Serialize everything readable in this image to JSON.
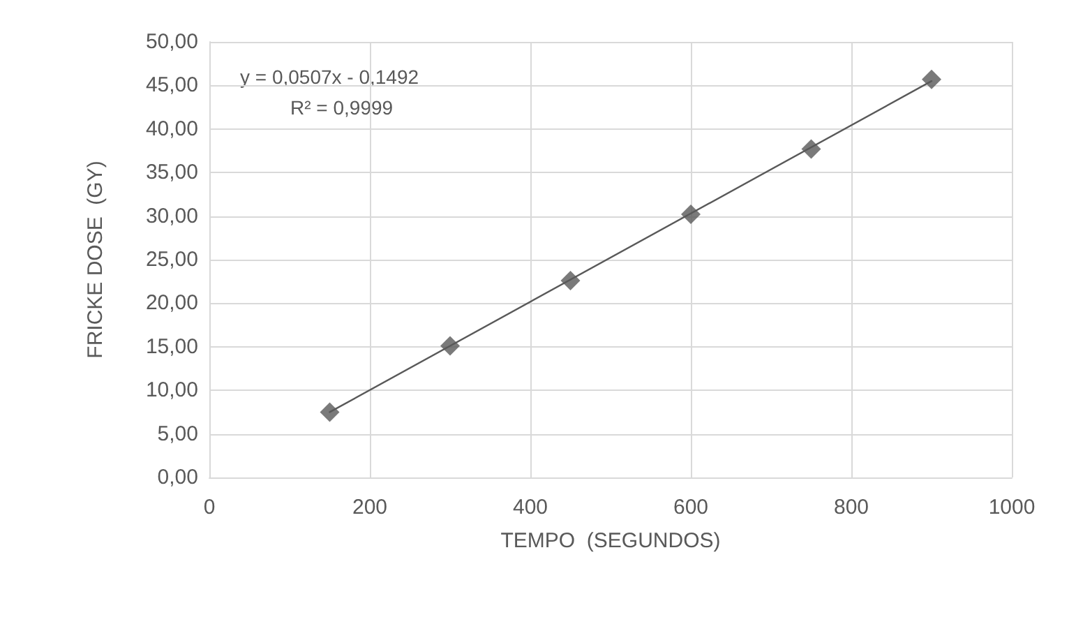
{
  "chart_data": {
    "type": "scatter",
    "xlabel": "TEMPO  (SEGUNDOS)",
    "ylabel": "FRICKE DOSE  (GY)",
    "x": [
      150,
      300,
      450,
      600,
      750,
      900
    ],
    "series": [
      {
        "color": "#595959",
        "marker": "diamond",
        "values": [
          7.5,
          15.1,
          22.6,
          30.2,
          37.7,
          45.7
        ]
      },
      {
        "type": "line",
        "color": "#595959",
        "marker": "none",
        "line_style": "solid",
        "x": [
          150,
          900
        ],
        "values": [
          7.5,
          45.5
        ]
      }
    ],
    "annotations": [
      "y = 0,0507x - 0,1492",
      "R² = 0,9999"
    ],
    "xlim": [
      0,
      1000
    ],
    "xticks": [
      0,
      200,
      400,
      600,
      800,
      1000
    ],
    "ylim": [
      0,
      50
    ],
    "yticks": [
      {
        "value": 0,
        "label": "0,00"
      },
      {
        "value": 5,
        "label": "5,00"
      },
      {
        "value": 10,
        "label": "10,00"
      },
      {
        "value": 15,
        "label": "15,00"
      },
      {
        "value": 20,
        "label": "20,00"
      },
      {
        "value": 25,
        "label": "25,00"
      },
      {
        "value": 30,
        "label": "30,00"
      },
      {
        "value": 35,
        "label": "35,00"
      },
      {
        "value": 40,
        "label": "40,00"
      },
      {
        "value": 45,
        "label": "45,00"
      },
      {
        "value": 50,
        "label": "50,00"
      }
    ],
    "grid": true
  }
}
